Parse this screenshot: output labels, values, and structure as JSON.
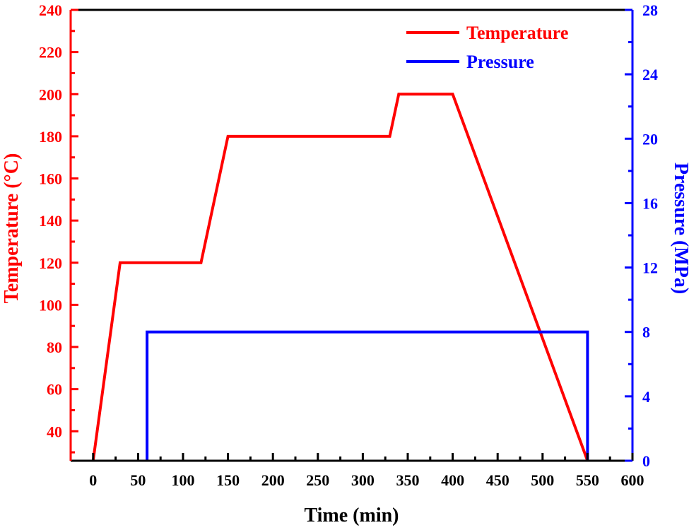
{
  "chart_data": {
    "type": "line",
    "title": "",
    "xlabel": "Time (min)",
    "ylabel": "Temperature (°C)",
    "y2label": "Pressure (MPa)",
    "xlim": [
      -25,
      600
    ],
    "ylim": [
      26,
      240
    ],
    "y2lim": [
      0,
      28
    ],
    "xticks": [
      0,
      50,
      100,
      150,
      200,
      250,
      300,
      350,
      400,
      450,
      500,
      550,
      600
    ],
    "yticks": [
      40,
      60,
      80,
      100,
      120,
      140,
      160,
      180,
      200,
      220,
      240
    ],
    "y2ticks": [
      0,
      4,
      8,
      12,
      16,
      20,
      24,
      28
    ],
    "grid": false,
    "legend_position": "top-right",
    "colors": {
      "temperature": "#ff0000",
      "pressure": "#0000ff",
      "axis": "#000000"
    },
    "series": [
      {
        "name": "Temperature",
        "axis": "left",
        "color": "#ff0000",
        "x": [
          0,
          30,
          120,
          150,
          330,
          340,
          400,
          550
        ],
        "y": [
          26,
          120,
          120,
          180,
          180,
          200,
          200,
          26
        ]
      },
      {
        "name": "Pressure",
        "axis": "right",
        "color": "#0000ff",
        "x": [
          60,
          60,
          550,
          550
        ],
        "y": [
          0,
          8,
          8,
          0
        ]
      }
    ]
  }
}
